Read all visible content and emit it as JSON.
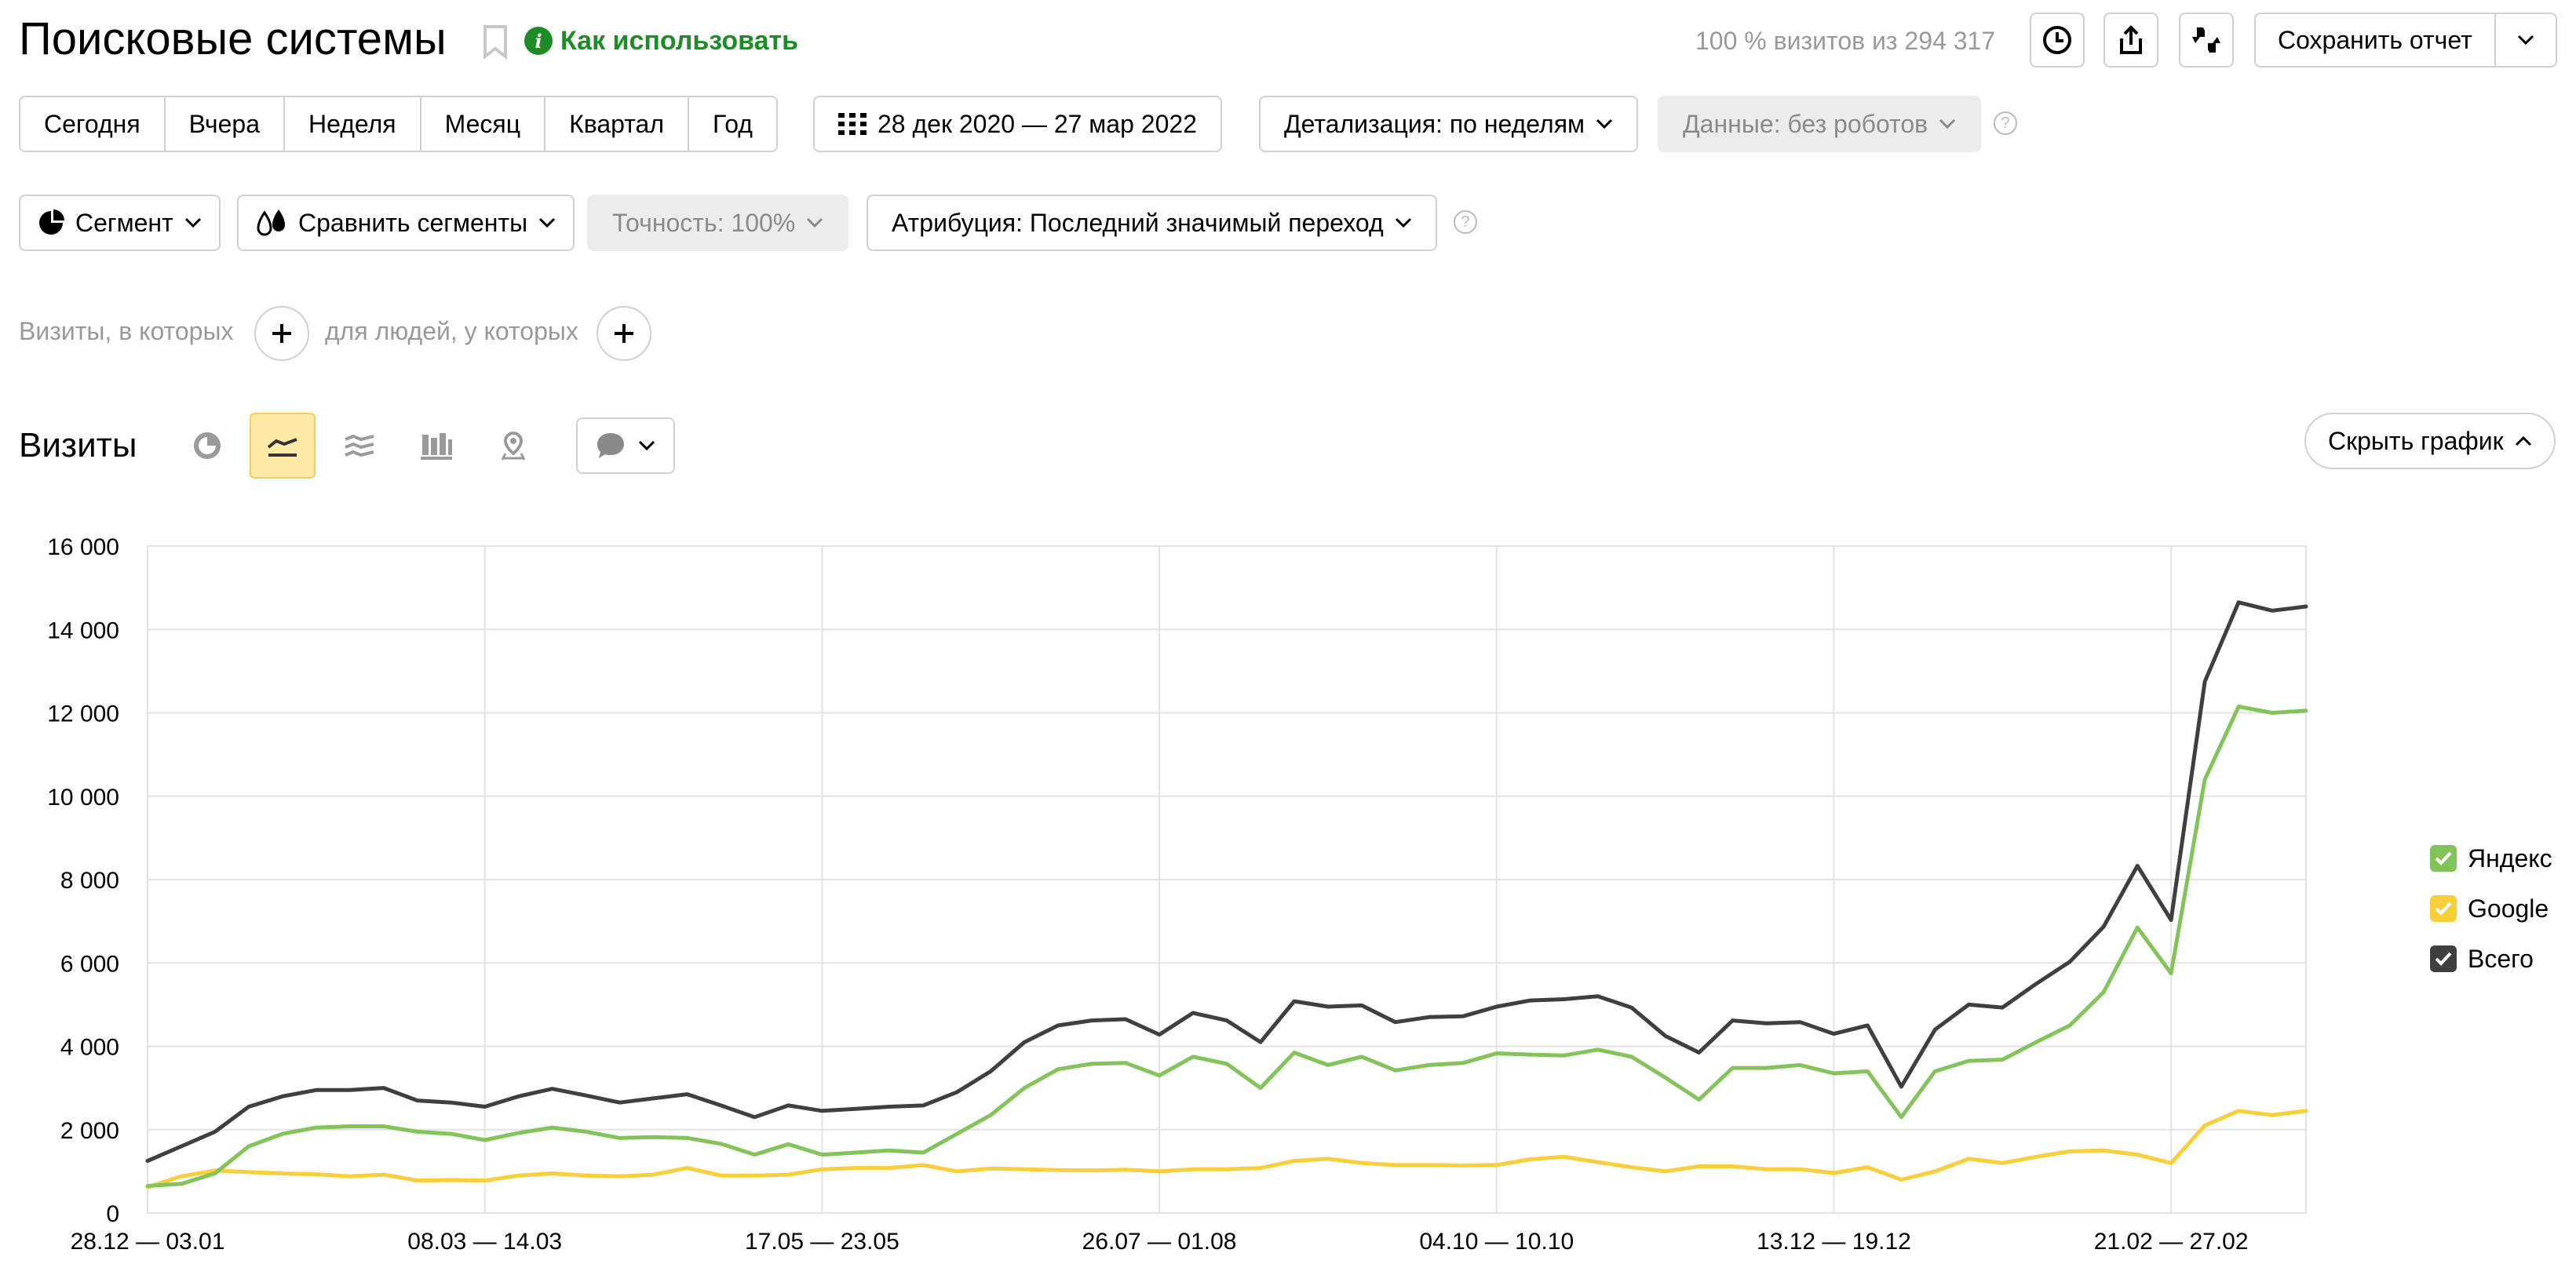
{
  "header": {
    "title": "Поисковые системы",
    "how_to_use": "Как использовать",
    "visits_share": "100 % визитов из 294 317",
    "save_report": "Сохранить отчет"
  },
  "periods": [
    "Сегодня",
    "Вчера",
    "Неделя",
    "Месяц",
    "Квартал",
    "Год"
  ],
  "date_range": "28 дек 2020 — 27 мар 2022",
  "detail": "Детализация: по неделям",
  "data_filter": "Данные: без роботов",
  "segment": "Сегмент",
  "compare_segments": "Сравнить сегменты",
  "accuracy": "Точность: 100%",
  "attribution": "Атрибуция: Последний значимый переход",
  "filters": {
    "visits_label": "Визиты, в которых",
    "people_label": "для людей, у которых"
  },
  "chart_header": {
    "title": "Визиты",
    "hide_chart": "Скрыть график"
  },
  "colors": {
    "yandex": "#82c45a",
    "google": "#f8cf3a",
    "total": "#3f3f3f",
    "grid": "#e3e3e3",
    "accent_green": "#1d8b26"
  },
  "chart_data": {
    "type": "line",
    "ylim": [
      0,
      16000
    ],
    "yticks": [
      0,
      2000,
      4000,
      6000,
      8000,
      10000,
      12000,
      14000,
      16000
    ],
    "ytick_labels": [
      "0",
      "2 000",
      "4 000",
      "6 000",
      "8 000",
      "10 000",
      "12 000",
      "14 000",
      "16 000"
    ],
    "xtick_labels": [
      "28.12 — 03.01",
      "08.03 — 14.03",
      "17.05 — 23.05",
      "26.07 — 01.08",
      "04.10 — 10.10",
      "13.12 — 19.12",
      "21.02 — 27.02"
    ],
    "xtick_indices": [
      0,
      10,
      20,
      30,
      40,
      50,
      60
    ],
    "series": [
      {
        "name": "Яндекс",
        "color_key": "yandex",
        "values": [
          650,
          700,
          950,
          1600,
          1900,
          2050,
          2080,
          2080,
          1950,
          1900,
          1750,
          1920,
          2050,
          1950,
          1800,
          1820,
          1800,
          1660,
          1400,
          1650,
          1400,
          1450,
          1500,
          1450,
          1900,
          2350,
          3000,
          3450,
          3580,
          3600,
          3300,
          3750,
          3580,
          3000,
          3850,
          3550,
          3750,
          3420,
          3550,
          3600,
          3830,
          3800,
          3780,
          3920,
          3750,
          3250,
          2720,
          3480,
          3480,
          3550,
          3350,
          3400,
          2300,
          3400,
          3650,
          3680,
          4100,
          4500,
          5300,
          6850,
          5750,
          10400,
          12150,
          12000,
          12050
        ]
      },
      {
        "name": "Google",
        "color_key": "google",
        "values": [
          620,
          880,
          1020,
          980,
          950,
          930,
          880,
          920,
          780,
          790,
          780,
          900,
          950,
          900,
          880,
          920,
          1080,
          900,
          900,
          920,
          1050,
          1080,
          1080,
          1150,
          1000,
          1070,
          1050,
          1030,
          1020,
          1040,
          1000,
          1050,
          1050,
          1080,
          1250,
          1300,
          1200,
          1150,
          1150,
          1140,
          1150,
          1290,
          1350,
          1220,
          1100,
          1000,
          1120,
          1120,
          1050,
          1050,
          960,
          1100,
          800,
          1000,
          1300,
          1200,
          1350,
          1480,
          1500,
          1400,
          1200,
          2100,
          2450,
          2350,
          2450
        ]
      },
      {
        "name": "Всего",
        "color_key": "total",
        "values": [
          1250,
          1600,
          1950,
          2550,
          2800,
          2950,
          2950,
          3000,
          2700,
          2650,
          2550,
          2800,
          2980,
          2820,
          2650,
          2750,
          2850,
          2580,
          2300,
          2580,
          2450,
          2500,
          2550,
          2580,
          2900,
          3400,
          4100,
          4500,
          4620,
          4650,
          4280,
          4800,
          4620,
          4100,
          5080,
          4950,
          4980,
          4580,
          4700,
          4720,
          4950,
          5100,
          5130,
          5200,
          4930,
          4250,
          3850,
          4620,
          4550,
          4580,
          4300,
          4500,
          3030,
          4400,
          5000,
          4930,
          5500,
          6030,
          6870,
          8330,
          7030,
          12750,
          14650,
          14450,
          14550
        ]
      }
    ],
    "legend": [
      "Яндекс",
      "Google",
      "Всего"
    ],
    "legend_placement": "right",
    "grid": true
  }
}
